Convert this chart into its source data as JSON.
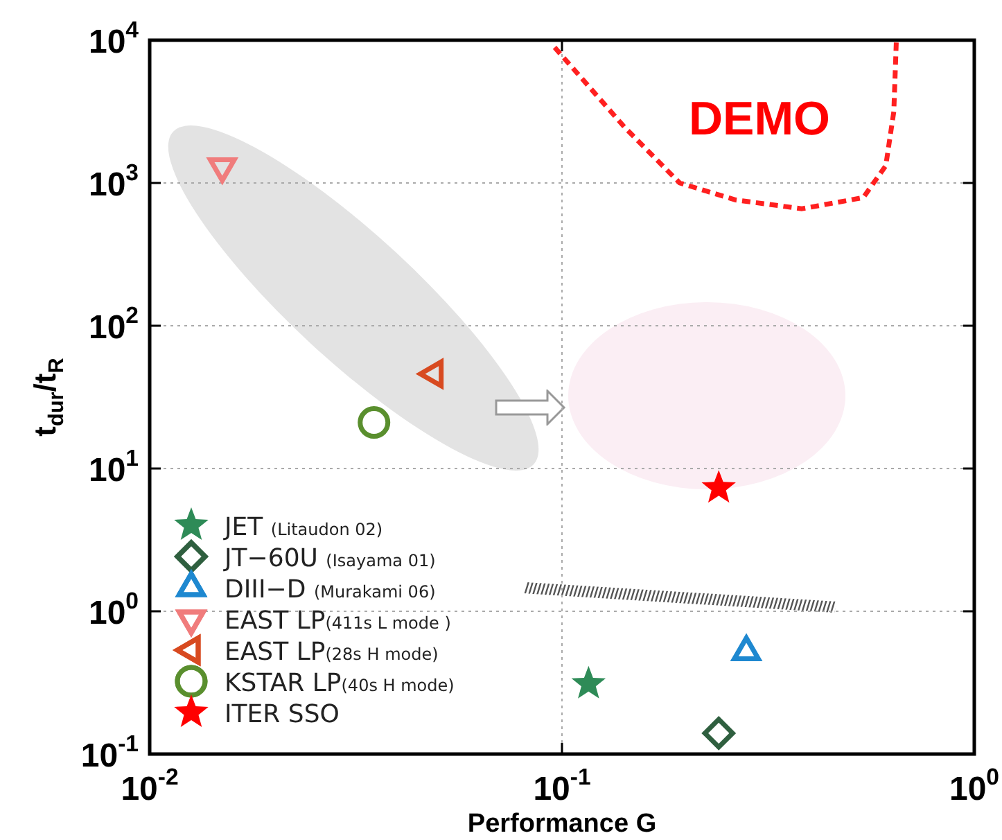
{
  "chart_data": {
    "type": "scatter",
    "xlabel": "Performance G",
    "ylabel": "t$_{dur}$/t$_{R}$",
    "log": "xy",
    "grid": true,
    "legend": "bottom left",
    "xlim": [
      0.01,
      1
    ],
    "ylim": [
      0.1,
      10000
    ],
    "xticks": [
      {
        "value": 0.01,
        "label": "10$^{-2}$"
      },
      {
        "value": 0.1,
        "label": "10$^{-1}$"
      },
      {
        "value": 1,
        "label": "10$^{0}$"
      }
    ],
    "yticks": [
      {
        "value": 0.1,
        "label": "10$^{-1}$"
      },
      {
        "value": 1,
        "label": "10$^{0}$"
      },
      {
        "value": 10,
        "label": "10$^{1}$"
      },
      {
        "value": 100,
        "label": "10$^{2}$"
      },
      {
        "value": 1000,
        "label": "10$^{3}$"
      },
      {
        "value": 10000,
        "label": "10$^{4}$"
      }
    ],
    "annotations": [
      "DEMO"
    ],
    "series": [
      {
        "name": "JET (Litaudon 02)",
        "color": "#2e8b57",
        "marker": "star",
        "x": [
          0.116
        ],
        "values": [
          0.31
        ]
      },
      {
        "name": "JT−60U (Isayama 01)",
        "color": "#2f5f3f",
        "marker": "diamond",
        "x": [
          0.24
        ],
        "values": [
          0.14
        ]
      },
      {
        "name": "DIII−D (Murakami 06)",
        "color": "#1e88d0",
        "marker": "triangle",
        "x": [
          0.28
        ],
        "values": [
          0.52
        ]
      },
      {
        "name": "EAST LP(411s L mode )",
        "color": "#f07c7c",
        "marker": "triangle-down",
        "x": [
          0.015
        ],
        "values": [
          1300
        ]
      },
      {
        "name": "EAST LP(28s H mode)",
        "color": "#d84a20",
        "marker": "triangle-left",
        "x": [
          0.049
        ],
        "values": [
          46
        ]
      },
      {
        "name": "KSTAR LP(40s H mode)",
        "color": "#5a8f2e",
        "marker": "circle",
        "x": [
          0.035
        ],
        "values": [
          21
        ]
      },
      {
        "name": "ITER SSO",
        "color": "#ff0000",
        "marker": "star",
        "x": [
          0.24
        ],
        "values": [
          7.3
        ]
      },
      {
        "type": "line",
        "color": "#ff2020",
        "line_style": "dashed",
        "marker": "none",
        "x": [
          0.096,
          0.142,
          0.193,
          0.264,
          0.382,
          0.538,
          0.61,
          0.638,
          0.647
        ],
        "values": [
          8900,
          2450,
          1000,
          760,
          660,
          790,
          1320,
          3160,
          9800
        ]
      }
    ]
  }
}
